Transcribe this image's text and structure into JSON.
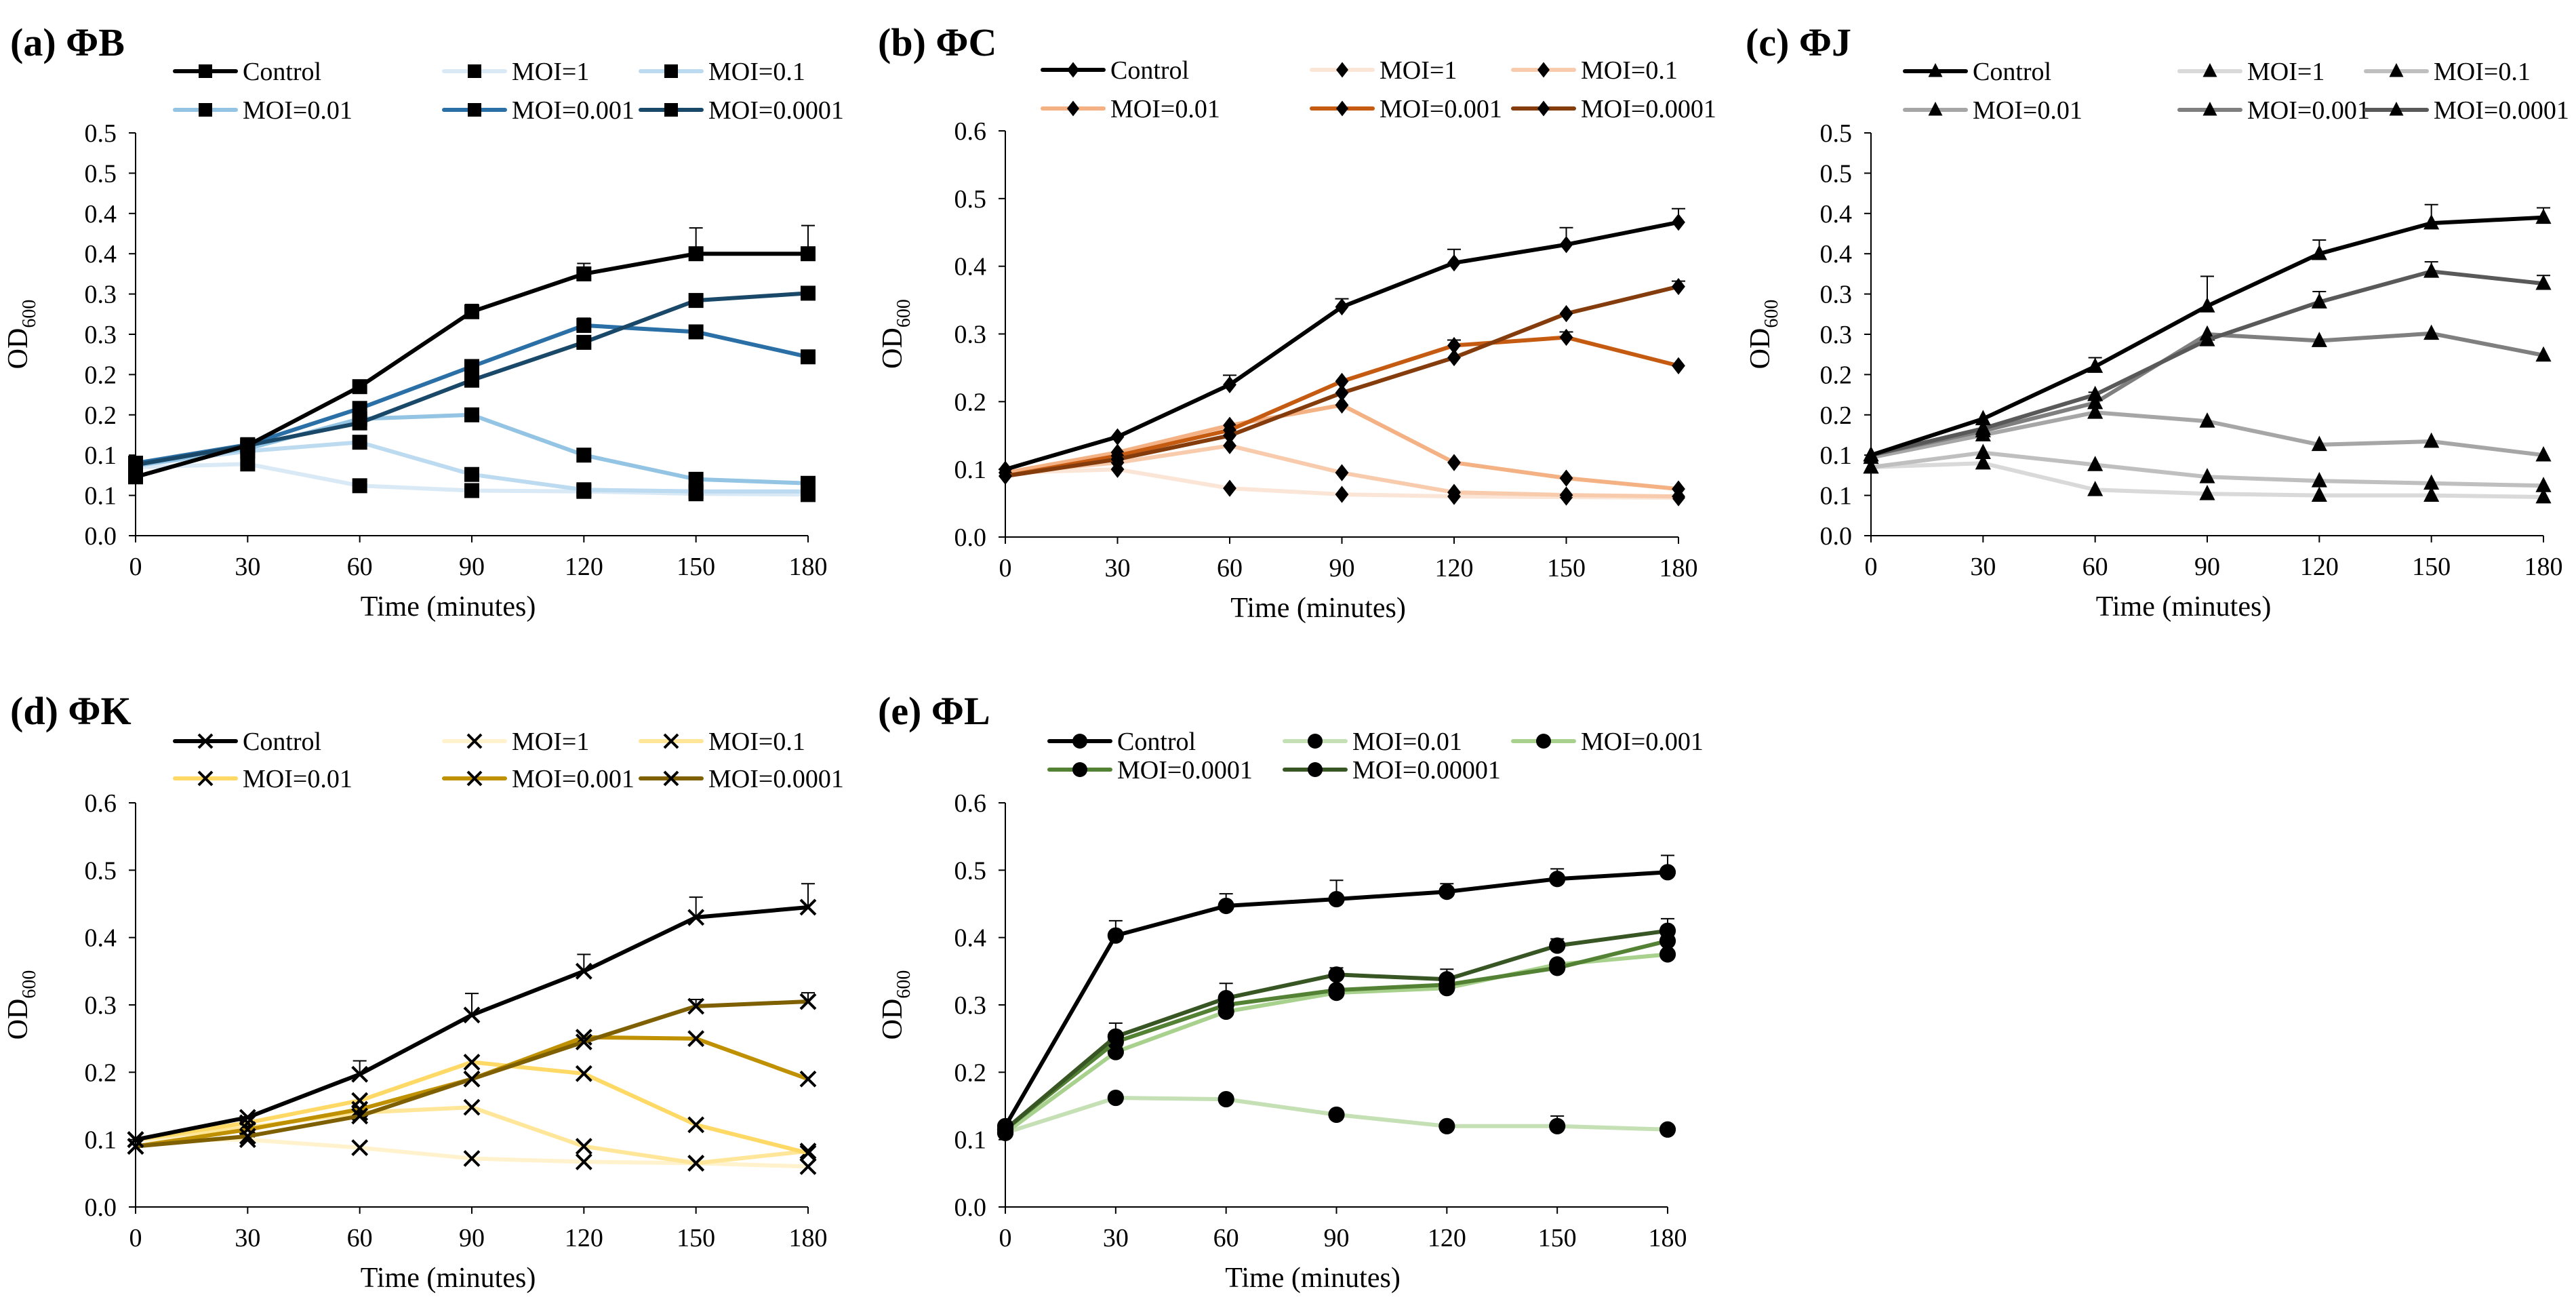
{
  "figure": {
    "x_label": "Time (minutes)",
    "y_label_main": "OD",
    "y_label_sub": "600"
  },
  "chart_data": [
    {
      "type": "line",
      "panel": "(a)",
      "title": "(a) ΦB",
      "marker": "square",
      "xlabel": "Time (minutes)",
      "ylabel": "OD600",
      "x": [
        0,
        30,
        60,
        90,
        120,
        150,
        180
      ],
      "x_ticks": [
        "0",
        "30",
        "60",
        "90",
        "120",
        "150",
        "180"
      ],
      "ylim": [
        0,
        0.5
      ],
      "y_tick_values": [
        0,
        0.05,
        0.1,
        0.15,
        0.2,
        0.25,
        0.3,
        0.35,
        0.4,
        0.45,
        0.5
      ],
      "y_tick_labels": [
        "0.0",
        "0.1",
        "0.1",
        "0.2",
        "0.2",
        "0.3",
        "0.3",
        "0.4",
        "0.4",
        "0.5",
        "0.5"
      ],
      "series": [
        {
          "name": "Control",
          "color": "#000000",
          "values": [
            0.073,
            0.112,
            0.185,
            0.278,
            0.325,
            0.35,
            0.35
          ],
          "errors": [
            0,
            0,
            0,
            0.009,
            0.013,
            0.032,
            0.035
          ]
        },
        {
          "name": "MOI=1",
          "color": "#d9eaf6",
          "values": [
            0.085,
            0.089,
            0.062,
            0.056,
            0.055,
            0.052,
            0.051
          ],
          "errors": [
            0,
            0,
            0,
            0,
            0,
            0,
            0
          ]
        },
        {
          "name": "MOI=0.1",
          "color": "#bcdaf0",
          "values": [
            0.087,
            0.105,
            0.116,
            0.076,
            0.057,
            0.055,
            0.055
          ],
          "errors": [
            0,
            0,
            0,
            0,
            0,
            0,
            0
          ]
        },
        {
          "name": "MOI=0.01",
          "color": "#93c4e3",
          "values": [
            0.087,
            0.108,
            0.145,
            0.15,
            0.1,
            0.07,
            0.065
          ],
          "errors": [
            0,
            0,
            0,
            0,
            0,
            0,
            0
          ]
        },
        {
          "name": "MOI=0.001",
          "color": "#2a6fa5",
          "values": [
            0.09,
            0.113,
            0.158,
            0.21,
            0.261,
            0.253,
            0.222
          ],
          "errors": [
            0,
            0,
            0,
            0,
            0.009,
            0,
            0.006
          ]
        },
        {
          "name": "MOI=0.0001",
          "color": "#1a4869",
          "values": [
            0.088,
            0.112,
            0.14,
            0.193,
            0.24,
            0.292,
            0.301
          ],
          "errors": [
            0,
            0,
            0,
            0,
            0,
            0,
            0
          ]
        }
      ]
    },
    {
      "type": "line",
      "panel": "(b)",
      "title": "(b) ΦC",
      "marker": "diamond",
      "xlabel": "Time (minutes)",
      "ylabel": "OD600",
      "x": [
        0,
        30,
        60,
        90,
        120,
        150,
        180
      ],
      "x_ticks": [
        "0",
        "30",
        "60",
        "90",
        "120",
        "150",
        "180"
      ],
      "ylim": [
        0,
        0.6
      ],
      "y_tick_values": [
        0,
        0.1,
        0.2,
        0.3,
        0.4,
        0.5,
        0.6
      ],
      "y_tick_labels": [
        "0.0",
        "0.1",
        "0.2",
        "0.3",
        "0.4",
        "0.5",
        "0.6"
      ],
      "series": [
        {
          "name": "Control",
          "color": "#000000",
          "values": [
            0.1,
            0.148,
            0.225,
            0.34,
            0.405,
            0.432,
            0.465
          ],
          "errors": [
            0,
            0,
            0.014,
            0.012,
            0.02,
            0.025,
            0.02
          ]
        },
        {
          "name": "MOI=1",
          "color": "#fbe5d6",
          "values": [
            0.095,
            0.1,
            0.072,
            0.063,
            0.06,
            0.059,
            0.058
          ],
          "errors": [
            0,
            0,
            0,
            0,
            0,
            0,
            0
          ]
        },
        {
          "name": "MOI=0.1",
          "color": "#f8cbad",
          "values": [
            0.095,
            0.11,
            0.135,
            0.095,
            0.066,
            0.062,
            0.06
          ],
          "errors": [
            0,
            0,
            0,
            0,
            0,
            0,
            0
          ]
        },
        {
          "name": "MOI=0.01",
          "color": "#f4b183",
          "values": [
            0.095,
            0.125,
            0.165,
            0.195,
            0.11,
            0.087,
            0.071
          ],
          "errors": [
            0,
            0,
            0,
            0,
            0,
            0,
            0
          ]
        },
        {
          "name": "MOI=0.001",
          "color": "#c55a11",
          "values": [
            0.09,
            0.12,
            0.158,
            0.23,
            0.283,
            0.295,
            0.253
          ],
          "errors": [
            0,
            0,
            0,
            0,
            0.008,
            0.008,
            0
          ]
        },
        {
          "name": "MOI=0.0001",
          "color": "#843c0c",
          "values": [
            0.09,
            0.115,
            0.15,
            0.213,
            0.265,
            0.33,
            0.37
          ],
          "errors": [
            0,
            0,
            0,
            0,
            0,
            0,
            0.008
          ]
        }
      ]
    },
    {
      "type": "line",
      "panel": "(c)",
      "title": "(c) ΦJ",
      "marker": "triangle",
      "xlabel": "Time (minutes)",
      "ylabel": "OD600",
      "x": [
        0,
        30,
        60,
        90,
        120,
        150,
        180
      ],
      "x_ticks": [
        "0",
        "30",
        "60",
        "90",
        "120",
        "150",
        "180"
      ],
      "ylim": [
        0,
        0.5
      ],
      "y_tick_values": [
        0,
        0.05,
        0.1,
        0.15,
        0.2,
        0.25,
        0.3,
        0.35,
        0.4,
        0.45,
        0.5
      ],
      "y_tick_labels": [
        "0.0",
        "0.1",
        "0.1",
        "0.2",
        "0.2",
        "0.3",
        "0.3",
        "0.4",
        "0.4",
        "0.5",
        "0.5"
      ],
      "series": [
        {
          "name": "Control",
          "color": "#000000",
          "values": [
            0.1,
            0.145,
            0.21,
            0.285,
            0.35,
            0.388,
            0.395
          ],
          "errors": [
            0,
            0,
            0.011,
            0.037,
            0.017,
            0.023,
            0.012
          ]
        },
        {
          "name": "MOI=1",
          "color": "#d9d9d9",
          "values": [
            0.085,
            0.09,
            0.057,
            0.052,
            0.05,
            0.05,
            0.048
          ],
          "errors": [
            0,
            0,
            0,
            0,
            0,
            0,
            0
          ]
        },
        {
          "name": "MOI=0.1",
          "color": "#bfbfbf",
          "values": [
            0.085,
            0.103,
            0.088,
            0.073,
            0.068,
            0.065,
            0.062
          ],
          "errors": [
            0,
            0,
            0,
            0,
            0,
            0,
            0
          ]
        },
        {
          "name": "MOI=0.01",
          "color": "#a6a6a6",
          "values": [
            0.097,
            0.125,
            0.153,
            0.142,
            0.113,
            0.117,
            0.1
          ],
          "errors": [
            0,
            0,
            0,
            0,
            0,
            0,
            0
          ]
        },
        {
          "name": "MOI=0.001",
          "color": "#7f7f7f",
          "values": [
            0.1,
            0.13,
            0.165,
            0.25,
            0.242,
            0.251,
            0.224
          ],
          "errors": [
            0,
            0,
            0.013,
            0,
            0,
            0,
            0
          ]
        },
        {
          "name": "MOI=0.0001",
          "color": "#595959",
          "values": [
            0.1,
            0.133,
            0.175,
            0.243,
            0.29,
            0.328,
            0.313
          ],
          "errors": [
            0,
            0,
            0,
            0,
            0.013,
            0.012,
            0.01
          ]
        }
      ]
    },
    {
      "type": "line",
      "panel": "(d)",
      "title": "(d) ΦK",
      "marker": "x",
      "xlabel": "Time (minutes)",
      "ylabel": "OD600",
      "x": [
        0,
        30,
        60,
        90,
        120,
        150,
        180
      ],
      "x_ticks": [
        "0",
        "30",
        "60",
        "90",
        "120",
        "150",
        "180"
      ],
      "ylim": [
        0,
        0.6
      ],
      "y_tick_values": [
        0,
        0.1,
        0.2,
        0.3,
        0.4,
        0.5,
        0.6
      ],
      "y_tick_labels": [
        "0.0",
        "0.1",
        "0.2",
        "0.3",
        "0.4",
        "0.5",
        "0.6"
      ],
      "series": [
        {
          "name": "Control",
          "color": "#000000",
          "values": [
            0.1,
            0.133,
            0.197,
            0.285,
            0.35,
            0.43,
            0.445
          ],
          "errors": [
            0,
            0,
            0.02,
            0.032,
            0.025,
            0.03,
            0.035
          ]
        },
        {
          "name": "MOI=1",
          "color": "#fff2cc",
          "values": [
            0.1,
            0.1,
            0.088,
            0.072,
            0.067,
            0.065,
            0.06
          ],
          "errors": [
            0,
            0,
            0,
            0,
            0,
            0,
            0
          ]
        },
        {
          "name": "MOI=0.1",
          "color": "#ffe699",
          "values": [
            0.1,
            0.118,
            0.14,
            0.148,
            0.09,
            0.065,
            0.083
          ],
          "errors": [
            0,
            0,
            0,
            0,
            0,
            0,
            0
          ]
        },
        {
          "name": "MOI=0.01",
          "color": "#ffd966",
          "values": [
            0.1,
            0.125,
            0.158,
            0.215,
            0.198,
            0.122,
            0.08
          ],
          "errors": [
            0,
            0,
            0,
            0,
            0,
            0,
            0
          ]
        },
        {
          "name": "MOI=0.001",
          "color": "#bf9000",
          "values": [
            0.09,
            0.115,
            0.145,
            0.19,
            0.252,
            0.25,
            0.19
          ],
          "errors": [
            0,
            0,
            0,
            0,
            0,
            0,
            0
          ]
        },
        {
          "name": "MOI=0.0001",
          "color": "#7f6000",
          "values": [
            0.09,
            0.105,
            0.135,
            0.19,
            0.245,
            0.298,
            0.305
          ],
          "errors": [
            0,
            0,
            0,
            0,
            0,
            0.01,
            0.013
          ]
        }
      ]
    },
    {
      "type": "line",
      "panel": "(e)",
      "title": "(e) ΦL",
      "marker": "circle",
      "xlabel": "Time (minutes)",
      "ylabel": "OD600",
      "x": [
        0,
        30,
        60,
        90,
        120,
        150,
        180
      ],
      "x_ticks": [
        "0",
        "30",
        "60",
        "90",
        "120",
        "150",
        "180"
      ],
      "ylim": [
        0,
        0.6
      ],
      "y_tick_values": [
        0,
        0.1,
        0.2,
        0.3,
        0.4,
        0.5,
        0.6
      ],
      "y_tick_labels": [
        "0.0",
        "0.1",
        "0.2",
        "0.3",
        "0.4",
        "0.5",
        "0.6"
      ],
      "series": [
        {
          "name": "Control",
          "color": "#000000",
          "values": [
            0.12,
            0.403,
            0.447,
            0.457,
            0.468,
            0.487,
            0.497
          ],
          "errors": [
            0,
            0.022,
            0.018,
            0.028,
            0.012,
            0.015,
            0.025
          ]
        },
        {
          "name": "MOI=0.01",
          "color": "#c5e0b4",
          "values": [
            0.11,
            0.162,
            0.16,
            0.137,
            0.12,
            0.12,
            0.115
          ],
          "errors": [
            0,
            0,
            0,
            0,
            0,
            0.015,
            0
          ]
        },
        {
          "name": "MOI=0.001",
          "color": "#a9d18e",
          "values": [
            0.11,
            0.23,
            0.29,
            0.318,
            0.325,
            0.36,
            0.375
          ],
          "errors": [
            0,
            0,
            0,
            0,
            0,
            0,
            0
          ]
        },
        {
          "name": "MOI=0.0001",
          "color": "#548235",
          "values": [
            0.115,
            0.245,
            0.3,
            0.322,
            0.33,
            0.355,
            0.395
          ],
          "errors": [
            0,
            0,
            0,
            0,
            0,
            0,
            0
          ]
        },
        {
          "name": "MOI=0.00001",
          "color": "#375623",
          "values": [
            0.115,
            0.253,
            0.31,
            0.345,
            0.338,
            0.388,
            0.41
          ],
          "errors": [
            0,
            0.02,
            0.022,
            0.01,
            0.015,
            0.01,
            0.018
          ]
        }
      ]
    }
  ]
}
